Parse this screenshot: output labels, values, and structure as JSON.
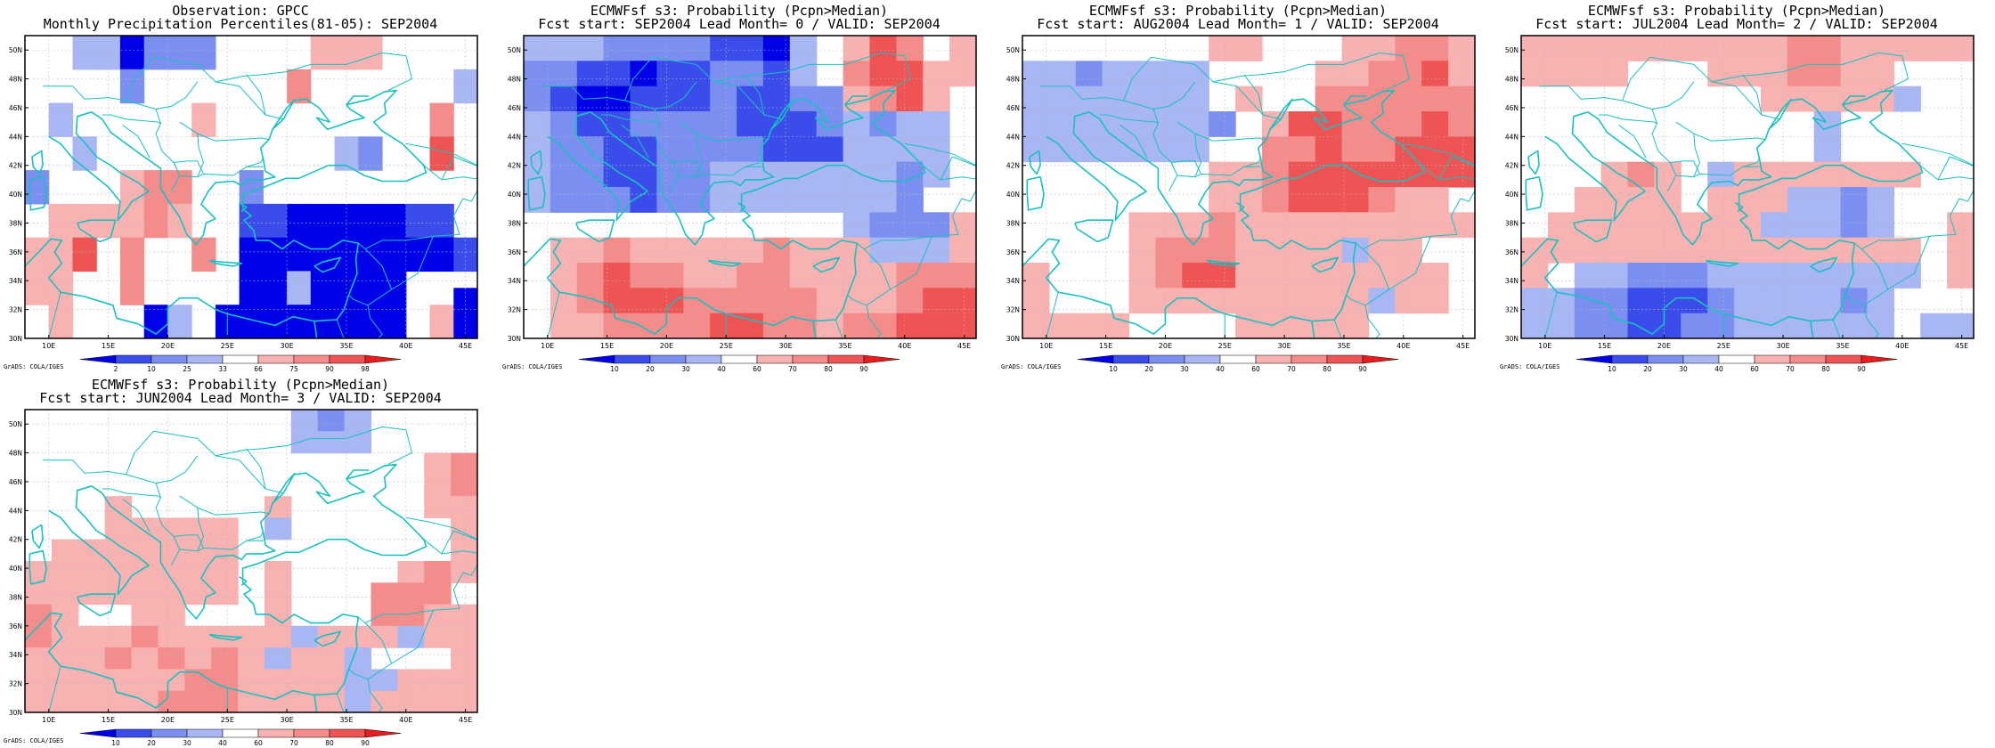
{
  "credit": "GrADS: COLA/IGES",
  "lon_labels": [
    "10E",
    "15E",
    "20E",
    "25E",
    "30E",
    "35E",
    "40E",
    "45E"
  ],
  "lat_labels": [
    "30N",
    "32N",
    "34N",
    "36N",
    "38N",
    "40N",
    "42N",
    "44N",
    "46N",
    "48N",
    "50N"
  ],
  "palette": {
    "neg3": "#0000e8",
    "neg2": "#3a4dea",
    "neg1": "#7a8ff0",
    "neg0": "#a9b6f4",
    "neutral": "#ffffff",
    "pos0": "#f8b2b2",
    "pos1": "#f48c8c",
    "pos2": "#ee5454",
    "pos3": "#e81c1c",
    "coast": "#19c0c0"
  },
  "panels": [
    {
      "id": "obs",
      "title1": "Observation: GPCC",
      "title2": "Monthly Precipitation Percentiles(81-05): SEP2004",
      "colorbar": [
        "2",
        "10",
        "25",
        "33",
        "66",
        "75",
        "90",
        "98"
      ],
      "grid": [
        "0002210000011000",
        "00000010000000000",
        "0000000000000000",
        "00000000000000000",
        "00000000000000000",
        "0000000000000000",
        "000000000000000"
      ]
    },
    {
      "id": "lead0",
      "title1": "ECMWFsf s3: Probability (Pcpn>Median)",
      "title2": "Fcst start: SEP2004  Lead Month= 0 / VALID: SEP2004",
      "colorbar": [
        "10",
        "20",
        "30",
        "40",
        "60",
        "70",
        "80",
        "90"
      ]
    },
    {
      "id": "lead1",
      "title1": "ECMWFsf s3: Probability (Pcpn>Median)",
      "title2": "Fcst start: AUG2004  Lead Month= 1 / VALID: SEP2004",
      "colorbar": [
        "10",
        "20",
        "30",
        "40",
        "60",
        "70",
        "80",
        "90"
      ]
    },
    {
      "id": "lead2",
      "title1": "ECMWFsf s3: Probability (Pcpn>Median)",
      "title2": "Fcst start: JUL2004  Lead Month= 2 / VALID: SEP2004",
      "colorbar": [
        "10",
        "20",
        "30",
        "40",
        "60",
        "70",
        "80",
        "90"
      ]
    },
    {
      "id": "lead3",
      "title1": "ECMWFsf s3: Probability (Pcpn>Median)",
      "title2": "Fcst start: JUN2004  Lead Month= 3 / VALID: SEP2004",
      "colorbar": [
        "10",
        "20",
        "30",
        "40",
        "60",
        "70",
        "80",
        "90"
      ]
    }
  ],
  "chart_data": {
    "type": "heatmap",
    "x_range": [
      8,
      46
    ],
    "y_range": [
      30,
      51
    ],
    "cell": "2x2 degree",
    "classes": "-4..-1 = blue shades (dry/low), 0 = white, 1..4 = red shades (wet/high)",
    "fields": {
      "obs": [
        [
          0,
          0,
          -1,
          -1,
          -4,
          -2,
          -2,
          -2,
          0,
          0,
          0,
          0,
          1,
          1,
          1,
          0,
          0,
          0,
          0
        ],
        [
          0,
          0,
          -1,
          -1,
          -4,
          -2,
          -2,
          -2,
          0,
          0,
          0,
          0,
          1,
          1,
          1,
          0,
          0,
          0,
          0
        ],
        [
          0,
          0,
          0,
          0,
          -2,
          0,
          0,
          0,
          0,
          0,
          0,
          2,
          0,
          0,
          0,
          0,
          0,
          0,
          -1
        ],
        [
          0,
          0,
          0,
          0,
          -2,
          0,
          0,
          0,
          0,
          0,
          0,
          2,
          0,
          0,
          0,
          0,
          0,
          0,
          -1
        ],
        [
          0,
          -1,
          0,
          0,
          0,
          0,
          0,
          1,
          0,
          0,
          0,
          0,
          0,
          0,
          0,
          0,
          0,
          2,
          0
        ],
        [
          0,
          -1,
          0,
          0,
          0,
          0,
          0,
          1,
          0,
          0,
          0,
          0,
          0,
          0,
          0,
          0,
          0,
          2,
          0
        ],
        [
          0,
          0,
          -1,
          0,
          0,
          0,
          0,
          0,
          0,
          0,
          0,
          0,
          0,
          -1,
          -2,
          0,
          0,
          3,
          0
        ],
        [
          0,
          0,
          -1,
          0,
          0,
          0,
          0,
          0,
          0,
          0,
          0,
          0,
          0,
          -1,
          -2,
          0,
          0,
          3,
          0
        ],
        [
          -2,
          0,
          0,
          0,
          1,
          2,
          2,
          0,
          0,
          -2,
          0,
          0,
          0,
          0,
          0,
          0,
          0,
          0,
          0
        ],
        [
          -2,
          0,
          0,
          0,
          1,
          2,
          2,
          0,
          0,
          -2,
          0,
          0,
          0,
          0,
          0,
          0,
          0,
          0,
          0
        ],
        [
          0,
          1,
          1,
          1,
          1,
          2,
          1,
          0,
          0,
          -3,
          -3,
          -4,
          -4,
          -4,
          -4,
          -4,
          -3,
          -3,
          0
        ],
        [
          0,
          1,
          1,
          1,
          1,
          2,
          1,
          0,
          0,
          -3,
          -3,
          -4,
          -4,
          -4,
          -4,
          -4,
          -3,
          -3,
          0
        ],
        [
          1,
          1,
          3,
          0,
          2,
          0,
          0,
          2,
          0,
          -4,
          -4,
          -4,
          -4,
          -4,
          -4,
          -4,
          -4,
          -4,
          -3
        ],
        [
          1,
          1,
          3,
          0,
          2,
          0,
          0,
          2,
          0,
          -4,
          -4,
          -4,
          -4,
          -4,
          -4,
          -4,
          -4,
          -4,
          -3
        ],
        [
          1,
          1,
          0,
          0,
          2,
          0,
          0,
          0,
          0,
          -4,
          -4,
          -1,
          -4,
          -4,
          -4,
          -4,
          0,
          0,
          0
        ],
        [
          1,
          1,
          0,
          0,
          2,
          0,
          0,
          0,
          0,
          -4,
          -4,
          -1,
          -4,
          -4,
          -4,
          -4,
          0,
          0,
          -4
        ],
        [
          0,
          1,
          0,
          0,
          0,
          -4,
          -1,
          0,
          -4,
          -4,
          -4,
          -4,
          -4,
          -4,
          -4,
          -4,
          0,
          1,
          -4
        ],
        [
          0,
          1,
          0,
          0,
          0,
          -4,
          -1,
          0,
          -4,
          -4,
          -4,
          -4,
          -4,
          -4,
          -4,
          -4,
          0,
          1,
          -4
        ]
      ],
      "lead0": [
        [
          -1,
          -1,
          -1,
          -2,
          -2,
          -2,
          -2,
          -3,
          -3,
          -4,
          -1,
          0,
          1,
          3,
          2,
          0,
          1
        ],
        [
          -2,
          -2,
          -3,
          -3,
          -4,
          -3,
          -3,
          -2,
          -2,
          -3,
          -1,
          0,
          2,
          3,
          3,
          1,
          1
        ],
        [
          -2,
          -3,
          -4,
          -4,
          -3,
          -3,
          -3,
          -2,
          -3,
          -3,
          -2,
          -2,
          1,
          2,
          3,
          1,
          0
        ],
        [
          -1,
          -2,
          -3,
          -3,
          -2,
          -2,
          -2,
          -2,
          -3,
          -3,
          -3,
          -2,
          -1,
          -2,
          -1,
          -1,
          0
        ],
        [
          -1,
          -2,
          -2,
          -3,
          -3,
          -2,
          -2,
          -2,
          -2,
          -3,
          -3,
          -3,
          -1,
          -1,
          -1,
          -1,
          0
        ],
        [
          -1,
          -2,
          -2,
          -3,
          -3,
          -2,
          -2,
          -1,
          -1,
          -1,
          -1,
          -1,
          -1,
          -1,
          -2,
          -1,
          0
        ],
        [
          -1,
          -2,
          -2,
          -2,
          -3,
          -2,
          -2,
          -1,
          -1,
          -1,
          -1,
          -1,
          -1,
          -1,
          -2,
          0,
          0
        ],
        [
          0,
          0,
          0,
          0,
          0,
          0,
          0,
          0,
          0,
          0,
          0,
          0,
          -1,
          -2,
          -2,
          -2,
          1
        ],
        [
          0,
          1,
          1,
          2,
          1,
          1,
          1,
          1,
          1,
          2,
          1,
          1,
          1,
          -1,
          -1,
          -1,
          1
        ],
        [
          0,
          1,
          2,
          3,
          2,
          2,
          1,
          1,
          2,
          2,
          1,
          1,
          1,
          1,
          2,
          2,
          2
        ],
        [
          0,
          1,
          2,
          3,
          3,
          3,
          2,
          2,
          2,
          2,
          2,
          1,
          1,
          1,
          2,
          3,
          3
        ],
        [
          0,
          1,
          1,
          2,
          2,
          2,
          2,
          3,
          3,
          2,
          2,
          1,
          2,
          2,
          3,
          3,
          3
        ]
      ],
      "lead1": [
        [
          0,
          0,
          0,
          0,
          0,
          0,
          0,
          1,
          1,
          0,
          0,
          0,
          1,
          1,
          2,
          2,
          1
        ],
        [
          -1,
          -1,
          -2,
          -1,
          -1,
          -1,
          -1,
          0,
          0,
          0,
          0,
          1,
          1,
          2,
          2,
          3,
          1
        ],
        [
          -1,
          -1,
          -1,
          -1,
          -1,
          -1,
          -1,
          0,
          1,
          0,
          0,
          2,
          2,
          2,
          2,
          2,
          2
        ],
        [
          -1,
          -1,
          -1,
          -1,
          -1,
          -1,
          -1,
          -2,
          0,
          1,
          3,
          3,
          2,
          2,
          2,
          3,
          2
        ],
        [
          -1,
          -1,
          -1,
          -1,
          -1,
          -1,
          -1,
          0,
          0,
          2,
          2,
          3,
          2,
          2,
          3,
          3,
          3
        ],
        [
          0,
          0,
          0,
          0,
          0,
          0,
          0,
          1,
          1,
          2,
          3,
          3,
          3,
          3,
          3,
          3,
          3
        ],
        [
          0,
          0,
          0,
          0,
          0,
          0,
          0,
          1,
          1,
          2,
          3,
          3,
          3,
          2,
          1,
          1,
          0
        ],
        [
          0,
          0,
          0,
          0,
          1,
          1,
          1,
          2,
          1,
          1,
          1,
          1,
          1,
          1,
          1,
          1,
          1
        ],
        [
          0,
          0,
          0,
          0,
          1,
          2,
          2,
          2,
          1,
          1,
          1,
          1,
          -1,
          1,
          1,
          0,
          0
        ],
        [
          1,
          0,
          0,
          0,
          1,
          2,
          3,
          3,
          1,
          1,
          1,
          1,
          1,
          1,
          1,
          1,
          0
        ],
        [
          1,
          0,
          0,
          0,
          1,
          1,
          1,
          1,
          1,
          1,
          1,
          1,
          1,
          -1,
          1,
          1,
          0
        ],
        [
          1,
          1,
          1,
          1,
          0,
          0,
          0,
          0,
          1,
          1,
          1,
          1,
          1,
          0,
          0,
          0,
          0
        ]
      ],
      "lead2": [
        [
          1,
          1,
          1,
          1,
          1,
          1,
          1,
          1,
          1,
          1,
          2,
          2,
          1,
          1,
          1,
          1,
          1
        ],
        [
          1,
          1,
          1,
          1,
          0,
          0,
          0,
          1,
          1,
          1,
          2,
          2,
          1,
          1,
          0,
          0,
          0
        ],
        [
          0,
          0,
          0,
          0,
          0,
          0,
          0,
          0,
          0,
          1,
          1,
          1,
          1,
          1,
          -1,
          0,
          0
        ],
        [
          0,
          0,
          0,
          0,
          0,
          0,
          0,
          0,
          0,
          0,
          0,
          -1,
          0,
          0,
          0,
          0,
          0
        ],
        [
          0,
          0,
          0,
          0,
          0,
          0,
          0,
          0,
          0,
          0,
          0,
          -1,
          0,
          0,
          0,
          0,
          0
        ],
        [
          0,
          0,
          0,
          1,
          2,
          1,
          0,
          -1,
          1,
          1,
          1,
          1,
          1,
          1,
          1,
          0,
          0
        ],
        [
          0,
          0,
          1,
          1,
          1,
          1,
          0,
          1,
          1,
          1,
          -1,
          -1,
          -2,
          -1,
          0,
          0,
          0
        ],
        [
          0,
          1,
          1,
          1,
          1,
          1,
          1,
          1,
          1,
          -1,
          -1,
          -1,
          -2,
          -1,
          0,
          0,
          1
        ],
        [
          1,
          1,
          1,
          1,
          1,
          1,
          1,
          1,
          1,
          1,
          1,
          1,
          1,
          1,
          1,
          0,
          1
        ],
        [
          1,
          0,
          -1,
          -1,
          -2,
          -2,
          -2,
          -1,
          -1,
          -1,
          -1,
          -1,
          -1,
          -1,
          -1,
          0,
          1
        ],
        [
          -1,
          -1,
          -2,
          -2,
          -3,
          -3,
          -3,
          -2,
          -1,
          -1,
          -1,
          -1,
          -2,
          -1,
          0,
          0,
          0
        ],
        [
          -1,
          -1,
          -2,
          -2,
          -3,
          -3,
          -2,
          -2,
          -1,
          -1,
          -1,
          -1,
          -1,
          -1,
          0,
          -1,
          -1
        ]
      ],
      "lead3": [
        [
          0,
          0,
          0,
          0,
          0,
          0,
          0,
          0,
          0,
          0,
          -1,
          -2,
          -1,
          0,
          0,
          0,
          0
        ],
        [
          0,
          0,
          0,
          0,
          0,
          0,
          0,
          0,
          0,
          0,
          -1,
          -1,
          -1,
          0,
          0,
          0,
          0
        ],
        [
          0,
          0,
          0,
          0,
          0,
          0,
          0,
          0,
          0,
          0,
          0,
          0,
          0,
          0,
          0,
          1,
          2
        ],
        [
          0,
          0,
          0,
          0,
          0,
          0,
          0,
          0,
          0,
          0,
          0,
          0,
          0,
          0,
          0,
          1,
          2
        ],
        [
          0,
          0,
          0,
          1,
          0,
          0,
          0,
          0,
          0,
          1,
          0,
          0,
          0,
          0,
          0,
          1,
          1
        ],
        [
          0,
          0,
          0,
          1,
          1,
          1,
          1,
          1,
          0,
          -1,
          0,
          0,
          0,
          0,
          0,
          0,
          1
        ],
        [
          0,
          1,
          1,
          1,
          1,
          1,
          1,
          1,
          0,
          0,
          0,
          0,
          0,
          0,
          0,
          0,
          1
        ],
        [
          1,
          1,
          1,
          1,
          1,
          1,
          1,
          1,
          0,
          1,
          0,
          0,
          0,
          0,
          1,
          2,
          1
        ],
        [
          1,
          1,
          1,
          1,
          1,
          1,
          1,
          1,
          0,
          1,
          0,
          0,
          0,
          2,
          2,
          2,
          0
        ],
        [
          2,
          1,
          0,
          0,
          1,
          1,
          0,
          0,
          0,
          1,
          0,
          0,
          0,
          2,
          2,
          1,
          1
        ],
        [
          2,
          1,
          1,
          1,
          2,
          1,
          1,
          1,
          1,
          1,
          -1,
          1,
          1,
          1,
          -1,
          1,
          1
        ],
        [
          1,
          1,
          1,
          2,
          1,
          2,
          1,
          2,
          1,
          -1,
          1,
          1,
          -1,
          0,
          0,
          0,
          1
        ],
        [
          1,
          1,
          1,
          1,
          1,
          1,
          2,
          2,
          1,
          1,
          1,
          1,
          -1,
          -1,
          1,
          1,
          1
        ],
        [
          1,
          1,
          1,
          1,
          1,
          2,
          2,
          2,
          1,
          1,
          1,
          1,
          -1,
          1,
          1,
          1,
          1
        ]
      ]
    }
  }
}
